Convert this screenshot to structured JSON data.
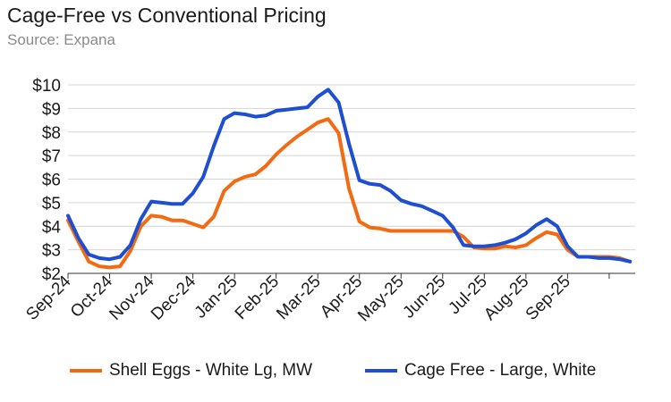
{
  "header": {
    "title": "Cage-Free vs Conventional Pricing",
    "subtitle": "Source: Expana"
  },
  "chart_data": {
    "type": "line",
    "title": "Cage-Free vs Conventional Pricing",
    "subtitle": "Source: Expana",
    "xlabel": "",
    "ylabel": "",
    "ylim": [
      2,
      10
    ],
    "xlim": [
      0,
      54.5
    ],
    "grid": true,
    "legend_position": "bottom",
    "y_ticks": [
      2,
      3,
      4,
      5,
      6,
      7,
      8,
      9,
      10
    ],
    "y_tick_labels": [
      "$2",
      "$3",
      "$4",
      "$5",
      "$6",
      "$7",
      "$8",
      "$9",
      "$10"
    ],
    "x_ticks": [
      0,
      4,
      8,
      12,
      16,
      20,
      24,
      28,
      32,
      36,
      40,
      44,
      48,
      52
    ],
    "x_tick_labels": [
      "Sep-24",
      "Oct-24",
      "Nov-24",
      "Dec-24",
      "Jan-25",
      "Feb-25",
      "Mar-25",
      "Apr-25",
      "May-25",
      "Jun-25",
      "Jul-25",
      "Aug-25",
      "Sep-25",
      ""
    ],
    "x_tick_label_indices": [
      0,
      4,
      8,
      12,
      16,
      20,
      24,
      28,
      32,
      36,
      40,
      44,
      48
    ],
    "x_tick_positions": [
      0,
      4,
      8,
      12,
      16,
      20,
      24,
      28,
      32,
      36,
      40,
      44,
      48
    ],
    "series": [
      {
        "name": "Shell Eggs - White Lg, MW",
        "color": "#f26a11",
        "x": [
          0,
          1,
          2,
          3,
          4,
          5,
          6,
          7,
          8,
          9,
          10,
          11,
          12,
          13,
          14,
          15,
          16,
          17,
          18,
          19,
          20,
          21,
          22,
          23,
          24,
          25,
          26,
          27,
          28,
          29,
          30,
          31,
          32,
          33,
          34,
          35,
          36,
          37,
          38,
          39,
          40,
          41,
          42,
          43,
          44,
          45,
          46,
          47,
          48,
          49,
          50,
          51,
          52,
          53,
          54
        ],
        "y": [
          4.25,
          3.35,
          2.5,
          2.3,
          2.25,
          2.3,
          2.95,
          4.0,
          4.45,
          4.4,
          4.25,
          4.25,
          4.1,
          3.95,
          4.4,
          5.5,
          5.9,
          6.1,
          6.2,
          6.55,
          7.05,
          7.45,
          7.8,
          8.1,
          8.4,
          8.55,
          7.95,
          5.6,
          4.2,
          3.95,
          3.9,
          3.8,
          3.8,
          3.8,
          3.8,
          3.8,
          3.8,
          3.8,
          3.55,
          3.1,
          3.05,
          3.05,
          3.15,
          3.1,
          3.2,
          3.5,
          3.75,
          3.65,
          3.0,
          2.7,
          2.7,
          2.7,
          2.7,
          2.65,
          2.5
        ]
      },
      {
        "name": "Cage Free - Large, White",
        "color": "#1e4fd0",
        "x": [
          0,
          1,
          2,
          3,
          4,
          5,
          6,
          7,
          8,
          9,
          10,
          11,
          12,
          13,
          14,
          15,
          16,
          17,
          18,
          19,
          20,
          21,
          22,
          23,
          24,
          25,
          26,
          27,
          28,
          29,
          30,
          31,
          32,
          33,
          34,
          35,
          36,
          37,
          38,
          39,
          40,
          41,
          42,
          43,
          44,
          45,
          46,
          47,
          48,
          49,
          50,
          51,
          52,
          53,
          54
        ],
        "y": [
          4.45,
          3.5,
          2.8,
          2.65,
          2.6,
          2.7,
          3.2,
          4.3,
          5.05,
          5.0,
          4.95,
          4.95,
          5.4,
          6.1,
          7.4,
          8.55,
          8.8,
          8.75,
          8.65,
          8.7,
          8.9,
          8.95,
          9.0,
          9.05,
          9.5,
          9.8,
          9.25,
          7.5,
          5.95,
          5.8,
          5.75,
          5.5,
          5.1,
          4.95,
          4.85,
          4.65,
          4.45,
          3.95,
          3.2,
          3.15,
          3.15,
          3.2,
          3.3,
          3.45,
          3.7,
          4.05,
          4.3,
          4.0,
          3.15,
          2.7,
          2.7,
          2.65,
          2.65,
          2.6,
          2.5
        ]
      }
    ]
  }
}
